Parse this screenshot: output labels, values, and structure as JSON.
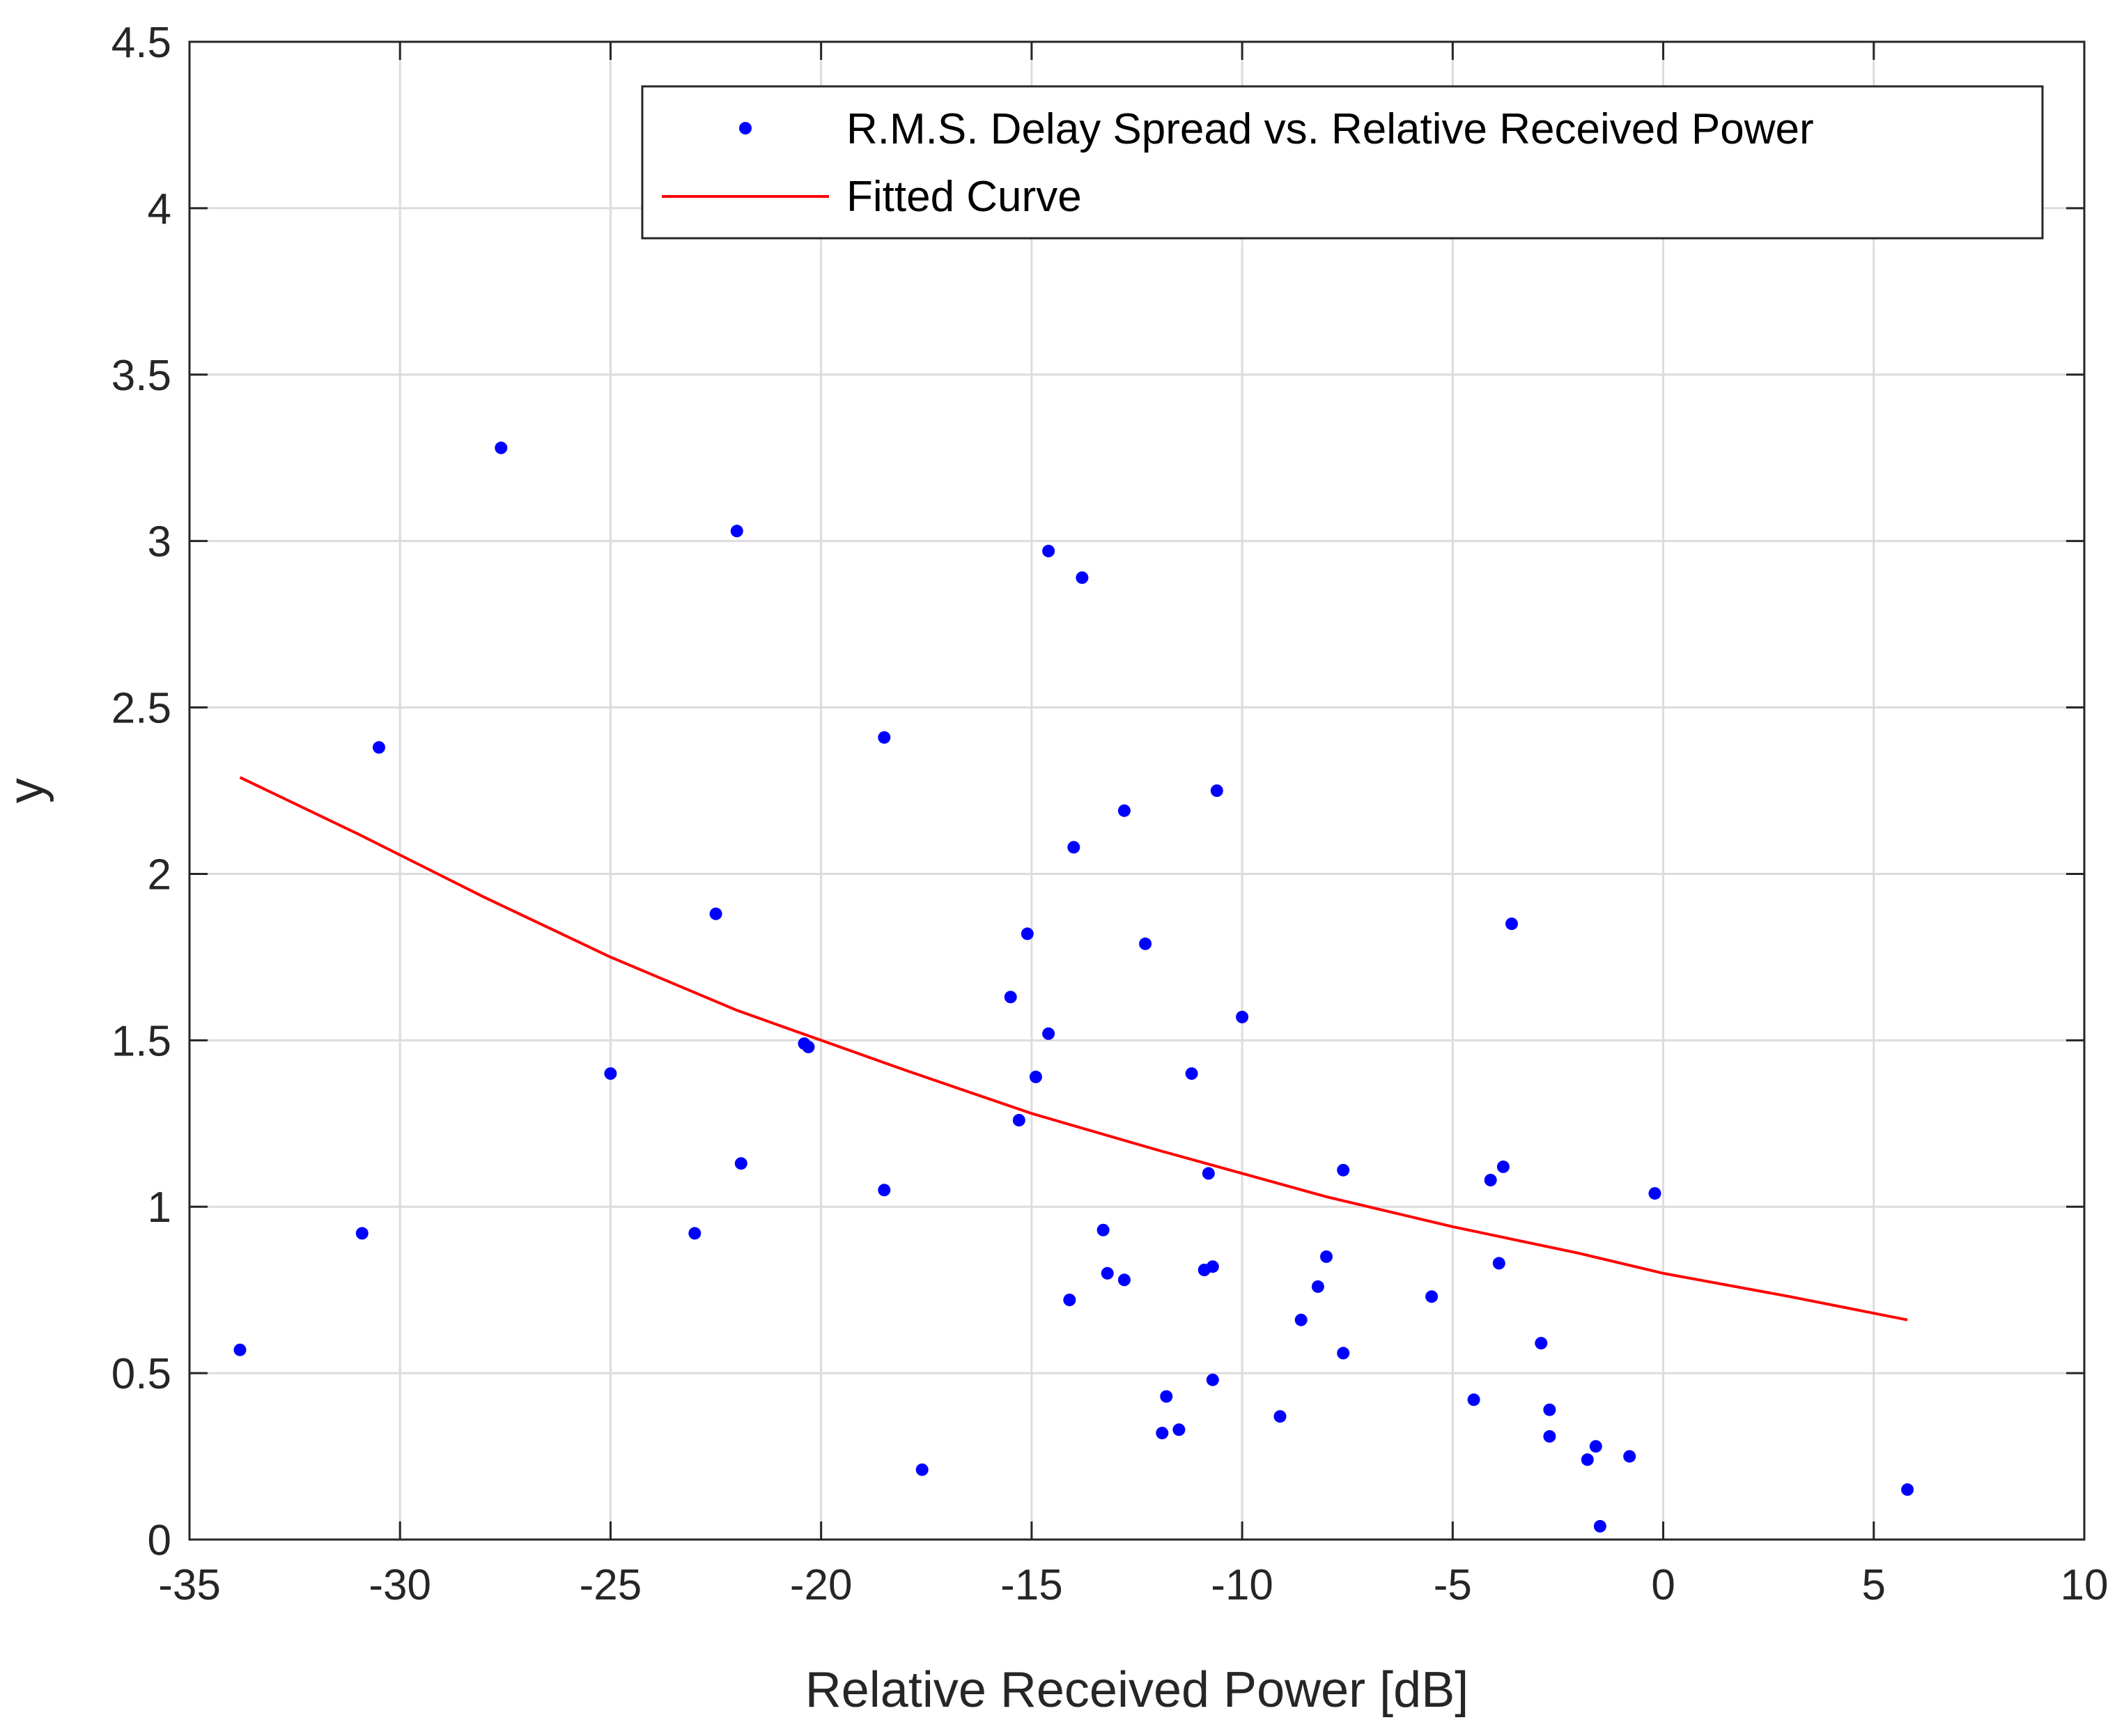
{
  "chart_data": {
    "type": "scatter",
    "title": "",
    "xlabel": "Relative Received Power [dB]",
    "ylabel": "y",
    "xlim": [
      -35,
      10
    ],
    "ylim": [
      0,
      4.5
    ],
    "xticks": [
      -35,
      -30,
      -25,
      -20,
      -15,
      -10,
      -5,
      0,
      5,
      10
    ],
    "yticks": [
      0,
      0.5,
      1,
      1.5,
      2,
      2.5,
      3,
      3.5,
      4,
      4.5
    ],
    "xtick_labels": [
      "-35",
      "-30",
      "-25",
      "-20",
      "-15",
      "-10",
      "-5",
      "0",
      "5",
      "10"
    ],
    "ytick_labels": [
      "0",
      "0.5",
      "1",
      "1.5",
      "2",
      "2.5",
      "3",
      "3.5",
      "4",
      "4.5"
    ],
    "grid": true,
    "legend_position": "top-right",
    "series": [
      {
        "name": "R.M.S. Delay Spread vs. Relative Received Power",
        "kind": "scatter",
        "color": "#0000ff",
        "points": [
          [
            -33.8,
            0.57
          ],
          [
            -30.9,
            0.92
          ],
          [
            -30.5,
            2.38
          ],
          [
            -27.6,
            3.28
          ],
          [
            -25.0,
            1.4
          ],
          [
            -23.0,
            0.92
          ],
          [
            -22.5,
            1.88
          ],
          [
            -22.0,
            3.03
          ],
          [
            -21.9,
            1.13
          ],
          [
            -20.4,
            1.49
          ],
          [
            -20.3,
            1.48
          ],
          [
            -18.5,
            2.41
          ],
          [
            -18.5,
            1.05
          ],
          [
            -17.6,
            0.21
          ],
          [
            -15.5,
            1.63
          ],
          [
            -15.3,
            1.26
          ],
          [
            -15.1,
            1.82
          ],
          [
            -14.9,
            1.39
          ],
          [
            -14.6,
            1.52
          ],
          [
            -14.6,
            2.97
          ],
          [
            -14.1,
            0.72
          ],
          [
            -14.0,
            2.08
          ],
          [
            -13.8,
            2.89
          ],
          [
            -13.3,
            0.93
          ],
          [
            -13.2,
            0.8
          ],
          [
            -12.8,
            0.78
          ],
          [
            -12.8,
            2.19
          ],
          [
            -12.3,
            1.79
          ],
          [
            -11.9,
            0.32
          ],
          [
            -11.8,
            0.43
          ],
          [
            -11.5,
            0.33
          ],
          [
            -11.2,
            1.4
          ],
          [
            -10.9,
            0.81
          ],
          [
            -10.8,
            1.1
          ],
          [
            -10.7,
            0.82
          ],
          [
            -10.7,
            0.48
          ],
          [
            -10.6,
            2.25
          ],
          [
            -10.0,
            1.57
          ],
          [
            -9.1,
            0.37
          ],
          [
            -8.6,
            0.66
          ],
          [
            -8.2,
            0.76
          ],
          [
            -8.0,
            0.85
          ],
          [
            -7.6,
            1.11
          ],
          [
            -7.6,
            0.56
          ],
          [
            -5.5,
            0.73
          ],
          [
            -4.5,
            0.42
          ],
          [
            -4.1,
            1.08
          ],
          [
            -3.9,
            0.83
          ],
          [
            -3.8,
            1.12
          ],
          [
            -3.6,
            1.85
          ],
          [
            -2.9,
            0.59
          ],
          [
            -2.7,
            0.39
          ],
          [
            -2.7,
            0.31
          ],
          [
            -1.8,
            0.24
          ],
          [
            -1.6,
            0.28
          ],
          [
            -1.5,
            0.04
          ],
          [
            -0.8,
            0.25
          ],
          [
            -0.2,
            1.04
          ],
          [
            5.8,
            0.15
          ]
        ]
      },
      {
        "name": "Fitted Curve",
        "kind": "line",
        "color": "#ff0000",
        "points": [
          [
            -33.8,
            2.29
          ],
          [
            -31.0,
            2.12
          ],
          [
            -28.0,
            1.93
          ],
          [
            -25.0,
            1.75
          ],
          [
            -22.0,
            1.59
          ],
          [
            -20.0,
            1.5
          ],
          [
            -18.0,
            1.41
          ],
          [
            -15.0,
            1.28
          ],
          [
            -12.0,
            1.17
          ],
          [
            -10.0,
            1.1
          ],
          [
            -8.0,
            1.03
          ],
          [
            -5.0,
            0.94
          ],
          [
            -2.0,
            0.86
          ],
          [
            0.0,
            0.8
          ],
          [
            3.0,
            0.73
          ],
          [
            5.8,
            0.66
          ]
        ]
      }
    ]
  }
}
